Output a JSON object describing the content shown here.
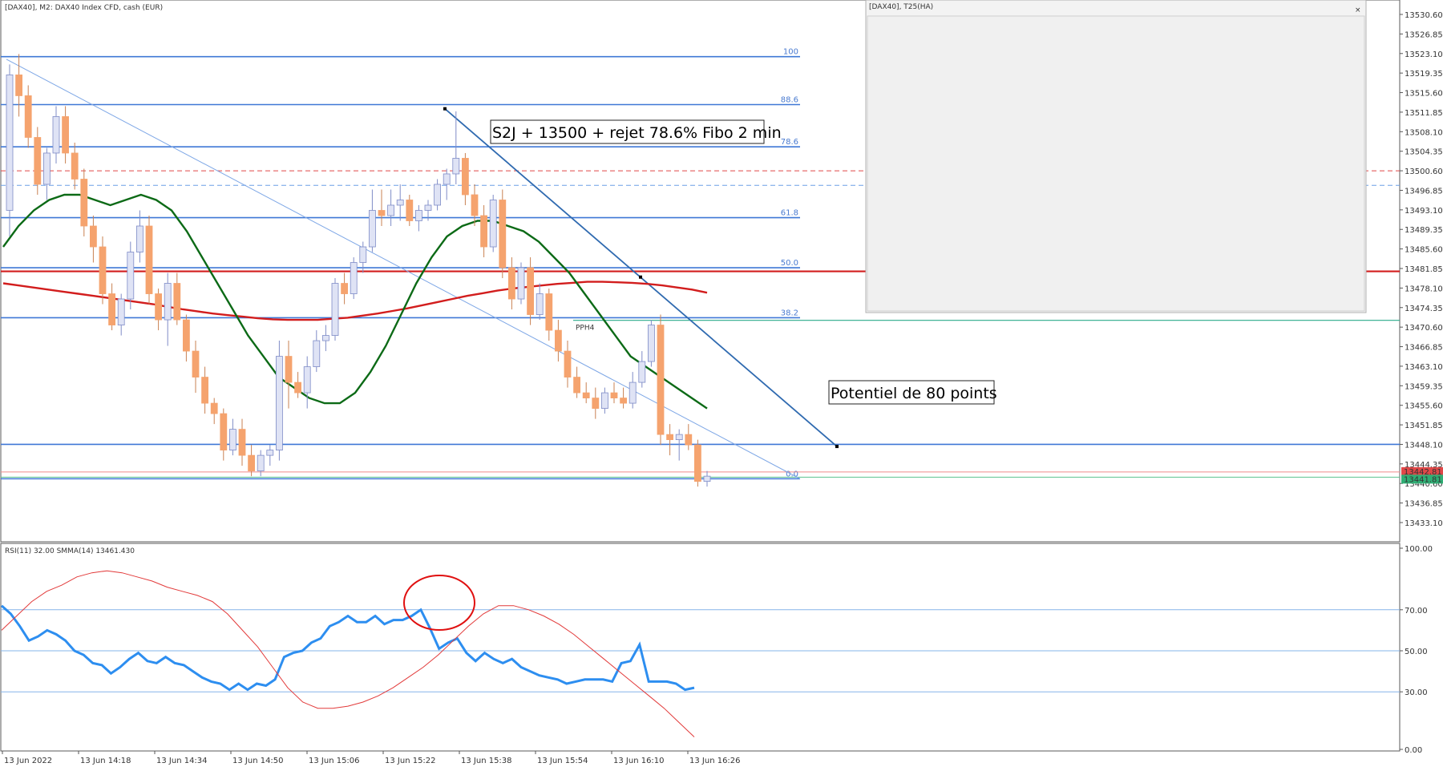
{
  "header": {
    "main_title": "[DAX40], M2:  DAX40 Index CFD, cash (EUR)",
    "sub_window_title": "[DAX40], T25(HA)",
    "sub_window_close": "×",
    "rsi_title": "RSI(11) 32.00 SMMA(14) 13461.430"
  },
  "annotations": {
    "setup": "S2J + 13500 + rejet 78.6% Fibo 2 min",
    "target": "Potentiel de 80 points",
    "pph_label": "PPH4"
  },
  "colors": {
    "bull": "#dfe3f5",
    "bull_border": "#7f8cc7",
    "bear": "#f5a36e",
    "level_blue": "#3f78d6",
    "ma_red": "#d21d1d",
    "ma_green": "#0c6a16",
    "rsi_blue": "#2d8ef0",
    "pph_teal": "#2aa98a"
  },
  "chart_data": [
    {
      "type": "candlestick",
      "title": "[DAX40], M2:  DAX40 Index CFD, cash (EUR)",
      "ylim": [
        13429.35,
        13534.0
      ],
      "y_ticks": [
        "13530.60",
        "13526.85",
        "13523.10",
        "13519.35",
        "13515.60",
        "13511.85",
        "13508.10",
        "13504.35",
        "13500.60",
        "13496.85",
        "13493.10",
        "13489.35",
        "13485.60",
        "13481.85",
        "13478.10",
        "13474.35",
        "13470.60",
        "13466.85",
        "13463.10",
        "13459.35",
        "13455.60",
        "13451.85",
        "13448.10",
        "13444.35",
        "13440.60",
        "13436.85",
        "13433.10"
      ],
      "price_tags": [
        "13442.81",
        "13441.81"
      ],
      "x_labels": [
        "13 Jun 2022",
        "13 Jun 14:18",
        "13 Jun 14:34",
        "13 Jun 14:50",
        "13 Jun 15:06",
        "13 Jun 15:22",
        "13 Jun 15:38",
        "13 Jun 15:54",
        "13 Jun 16:10",
        "13 Jun 16:26"
      ],
      "fibo_levels": [
        {
          "label": "100",
          "price": 13522.5
        },
        {
          "label": "88.6",
          "price": 13513.3
        },
        {
          "label": "78.6",
          "price": 13505.2
        },
        {
          "label": "61.8",
          "price": 13491.6
        },
        {
          "label": "50.0",
          "price": 13482.0
        },
        {
          "label": "38.2",
          "price": 13472.4
        },
        {
          "label": "0.0",
          "price": 13441.5
        }
      ],
      "horizontal_levels": [
        {
          "price": 13500.6,
          "style": "red-dashed"
        },
        {
          "price": 13497.8,
          "style": "blue-dashed"
        },
        {
          "price": 13481.3,
          "style": "red-solid"
        },
        {
          "price": 13471.9,
          "style": "teal-solid",
          "label": "PPH4"
        },
        {
          "price": 13448.1,
          "style": "blue-solid"
        },
        {
          "price": 13442.8,
          "style": "red-thin"
        },
        {
          "price": 13441.8,
          "style": "green-thin"
        }
      ],
      "candles": [
        [
          13493,
          13521,
          13488,
          13519
        ],
        [
          13519,
          13523,
          13511,
          13515
        ],
        [
          13515,
          13517,
          13505,
          13507
        ],
        [
          13507,
          13509,
          13496,
          13498
        ],
        [
          13498,
          13505,
          13495,
          13504
        ],
        [
          13504,
          13513,
          13502,
          13511
        ],
        [
          13511,
          13513,
          13502,
          13504
        ],
        [
          13504,
          13506,
          13497,
          13499
        ],
        [
          13499,
          13501,
          13488,
          13490
        ],
        [
          13490,
          13492,
          13483,
          13486
        ],
        [
          13486,
          13488,
          13475,
          13477
        ],
        [
          13477,
          13479,
          13470,
          13471
        ],
        [
          13471,
          13477,
          13469,
          13476
        ],
        [
          13476,
          13487,
          13474,
          13485
        ],
        [
          13485,
          13493,
          13483,
          13490
        ],
        [
          13490,
          13492,
          13475,
          13477
        ],
        [
          13477,
          13478,
          13470,
          13472
        ],
        [
          13472,
          13481,
          13467,
          13479
        ],
        [
          13479,
          13481,
          13471,
          13472
        ],
        [
          13472,
          13473,
          13464,
          13466
        ],
        [
          13466,
          13468,
          13458,
          13461
        ],
        [
          13461,
          13463,
          13454,
          13456
        ],
        [
          13456,
          13457,
          13452,
          13454
        ],
        [
          13454,
          13455,
          13445,
          13447
        ],
        [
          13447,
          13453,
          13446,
          13451
        ],
        [
          13451,
          13453,
          13444,
          13446
        ],
        [
          13446,
          13448,
          13442,
          13443
        ],
        [
          13443,
          13447,
          13442,
          13446
        ],
        [
          13446,
          13448,
          13444,
          13447
        ],
        [
          13447,
          13468,
          13445,
          13465
        ],
        [
          13465,
          13468,
          13455,
          13460
        ],
        [
          13460,
          13462,
          13457,
          13458
        ],
        [
          13458,
          13465,
          13455,
          13463
        ],
        [
          13463,
          13470,
          13462,
          13468
        ],
        [
          13468,
          13471,
          13466,
          13469
        ],
        [
          13469,
          13480,
          13468,
          13479
        ],
        [
          13479,
          13481,
          13475,
          13477
        ],
        [
          13477,
          13484,
          13476,
          13483
        ],
        [
          13483,
          13487,
          13481,
          13486
        ],
        [
          13486,
          13497,
          13485,
          13493
        ],
        [
          13493,
          13497,
          13490,
          13492
        ],
        [
          13492,
          13497,
          13490,
          13494
        ],
        [
          13494,
          13498,
          13491,
          13495
        ],
        [
          13495,
          13496,
          13490,
          13491
        ],
        [
          13491,
          13494,
          13489,
          13493
        ],
        [
          13493,
          13495,
          13491,
          13494
        ],
        [
          13494,
          13499,
          13493,
          13498
        ],
        [
          13498,
          13501,
          13495,
          13500
        ],
        [
          13500,
          13512,
          13498,
          13503
        ],
        [
          13503,
          13504,
          13494,
          13496
        ],
        [
          13496,
          13498,
          13490,
          13492
        ],
        [
          13492,
          13494,
          13484,
          13486
        ],
        [
          13486,
          13496,
          13485,
          13495
        ],
        [
          13495,
          13497,
          13480,
          13482
        ],
        [
          13482,
          13484,
          13474,
          13476
        ],
        [
          13476,
          13483,
          13475,
          13482
        ],
        [
          13482,
          13484,
          13471,
          13473
        ],
        [
          13473,
          13479,
          13472,
          13477
        ],
        [
          13477,
          13478,
          13468,
          13470
        ],
        [
          13470,
          13472,
          13464,
          13466
        ],
        [
          13466,
          13468,
          13459,
          13461
        ],
        [
          13461,
          13463,
          13457,
          13458
        ],
        [
          13458,
          13460,
          13456,
          13457
        ],
        [
          13457,
          13459,
          13453,
          13455
        ],
        [
          13455,
          13459,
          13454,
          13458
        ],
        [
          13458,
          13460,
          13456,
          13457
        ],
        [
          13457,
          13459,
          13455,
          13456
        ],
        [
          13456,
          13462,
          13455,
          13460
        ],
        [
          13460,
          13466,
          13459,
          13464
        ],
        [
          13464,
          13472,
          13463,
          13471
        ],
        [
          13471,
          13473,
          13448,
          13450
        ],
        [
          13450,
          13452,
          13446,
          13449
        ],
        [
          13449,
          13451,
          13445,
          13450
        ],
        [
          13450,
          13452,
          13447,
          13448
        ],
        [
          13448,
          13449,
          13440,
          13441
        ],
        [
          13441,
          13443,
          13440,
          13442
        ]
      ],
      "series": [
        {
          "name": "MA red",
          "values": [
            13479,
            13478.6,
            13478.2,
            13477.8,
            13477.4,
            13477,
            13476.6,
            13476.2,
            13475.8,
            13475.4,
            13475,
            13474.5,
            13474,
            13473.6,
            13473.2,
            13472.9,
            13472.6,
            13472.3,
            13472.1,
            13472,
            13472,
            13472,
            13472.2,
            13472.4,
            13472.8,
            13473.2,
            13473.7,
            13474.2,
            13474.8,
            13475.4,
            13476,
            13476.6,
            13477.1,
            13477.6,
            13478,
            13478.3,
            13478.6,
            13478.9,
            13479.1,
            13479.3,
            13479.3,
            13479.2,
            13479.1,
            13478.9,
            13478.6,
            13478.2,
            13477.8,
            13477.2
          ]
        },
        {
          "name": "MA green",
          "values": [
            13486,
            13490,
            13493,
            13495,
            13496,
            13496,
            13495,
            13494,
            13495,
            13496,
            13495,
            13493,
            13489,
            13484,
            13479,
            13474,
            13469,
            13465,
            13461,
            13459,
            13457,
            13456,
            13456,
            13458,
            13462,
            13467,
            13473,
            13479,
            13484,
            13488,
            13490,
            13491,
            13491,
            13490,
            13489,
            13487,
            13484,
            13481,
            13477,
            13473,
            13469,
            13465,
            13463,
            13461,
            13459,
            13457,
            13455
          ]
        }
      ]
    },
    {
      "type": "line",
      "title": "RSI(11) 32.00 SMMA(14) 13461.430",
      "ylim": [
        0,
        100
      ],
      "y_ticks": [
        "100.00",
        "70.00",
        "50.00",
        "30.00",
        "0.00"
      ],
      "series": [
        {
          "name": "RSI",
          "values": [
            72,
            68,
            62,
            55,
            57,
            60,
            58,
            55,
            50,
            48,
            44,
            43,
            39,
            42,
            46,
            49,
            45,
            44,
            47,
            44,
            43,
            40,
            37,
            35,
            34,
            31,
            34,
            31,
            34,
            33,
            36,
            47,
            49,
            50,
            54,
            56,
            62,
            64,
            67,
            64,
            64,
            67,
            63,
            65,
            65,
            67,
            70,
            61,
            51,
            54,
            56,
            49,
            45,
            49,
            46,
            44,
            46,
            42,
            40,
            38,
            37,
            36,
            34,
            35,
            36,
            36,
            36,
            35,
            44,
            45,
            53,
            35,
            35,
            35,
            34,
            31,
            32
          ]
        },
        {
          "name": "SMMA",
          "values": [
            60,
            67,
            74,
            79,
            82,
            86,
            88,
            89,
            88,
            86,
            84,
            81,
            79,
            77,
            74,
            68,
            60,
            52,
            42,
            32,
            25,
            22,
            22,
            23,
            25,
            28,
            32,
            37,
            42,
            48,
            55,
            62,
            68,
            72,
            72,
            70,
            67,
            63,
            58,
            52,
            46,
            40,
            34,
            28,
            22,
            15,
            8
          ]
        }
      ],
      "levels": [
        70,
        50,
        30
      ]
    }
  ]
}
